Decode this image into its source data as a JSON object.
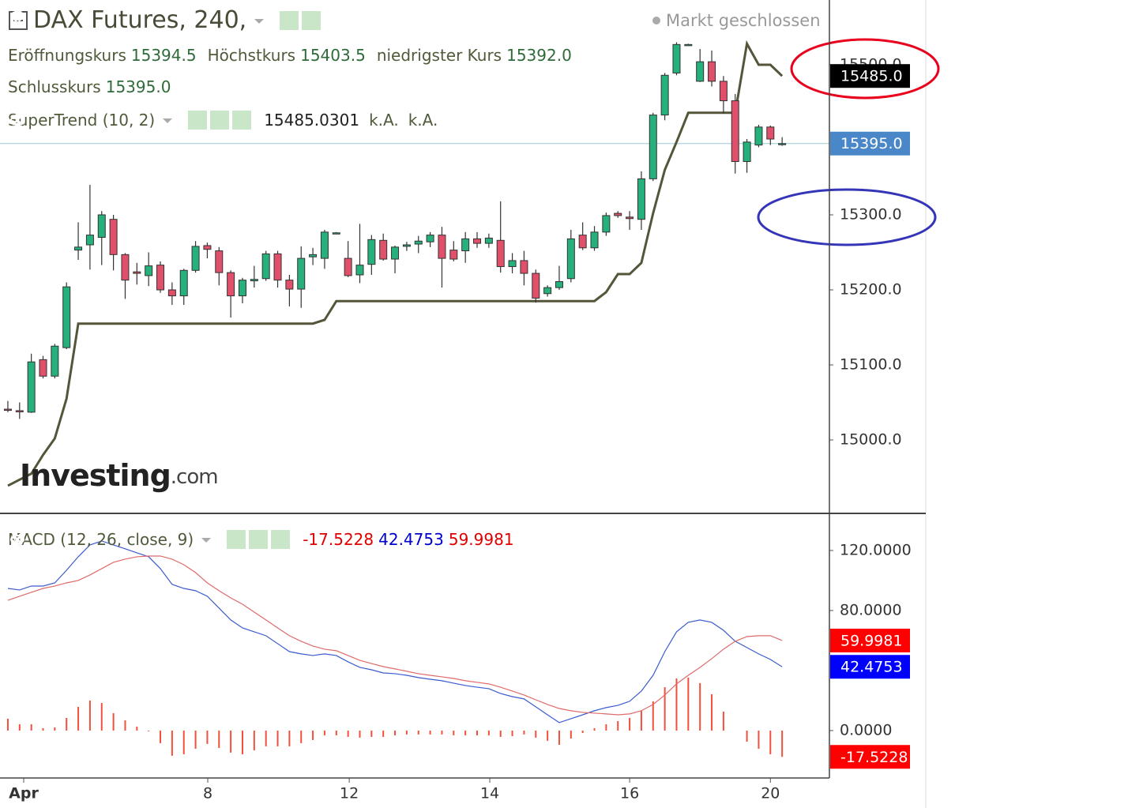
{
  "header": {
    "title": "DAX Futures, 240,",
    "status": "Markt geschlossen",
    "ohlc": [
      {
        "label": "Eröffnungskurs",
        "value": "15394.5"
      },
      {
        "label": "Höchstkurs",
        "value": "15403.5"
      },
      {
        "label": "niedrigster Kurs",
        "value": "15392.0"
      },
      {
        "label": "Schlusskurs",
        "value": "15395.0"
      }
    ],
    "indicator": {
      "label": "SuperTrend (10, 2)",
      "values": [
        "15485.0301",
        "k.A.",
        "k.A."
      ]
    },
    "watermark": "Investing",
    "watermark_suffix": ".com"
  },
  "chart_data": [
    {
      "type": "candlestick",
      "up_color": "#26b07c",
      "down_color": "#e0506a",
      "xlim": [
        -0.67,
        70.03
      ],
      "ylim": [
        14904.2,
        15586.3
      ],
      "yticks": [
        {
          "value": 15000,
          "label": "15000.0"
        },
        {
          "value": 15100,
          "label": "15100.0"
        },
        {
          "value": 15200,
          "label": "15200.0"
        },
        {
          "value": 15300,
          "label": "15300.0"
        },
        {
          "value": 15500,
          "label": "15500.0"
        }
      ],
      "x": [
        0,
        1,
        2,
        3,
        4,
        5,
        6,
        7,
        8,
        9,
        10,
        11,
        12,
        13,
        14,
        15,
        16,
        17,
        18,
        19,
        20,
        21,
        22,
        23,
        24,
        25,
        26,
        27,
        28,
        29,
        30,
        31,
        32,
        33,
        34,
        35,
        36,
        37,
        38,
        39,
        40,
        41,
        42,
        43,
        44,
        45,
        46,
        47,
        48,
        49,
        50,
        51,
        52,
        53,
        54,
        55,
        56,
        57,
        58,
        59,
        60,
        61,
        62,
        63,
        64,
        65,
        66
      ],
      "open": [
        15041,
        15039,
        15037,
        15107,
        15085,
        15123,
        15253,
        15260,
        15270,
        15294,
        15247,
        15224,
        15219,
        15233,
        15200,
        15192,
        15226,
        15259,
        15252,
        15223,
        15192,
        15212,
        15215,
        15248,
        15213,
        15201,
        15244,
        15242,
        15276,
        15242,
        15220,
        15234,
        15266,
        15241,
        15258,
        15261,
        15264,
        15273,
        15253,
        15252,
        15268,
        15262,
        15266,
        15231,
        15239,
        15222,
        15195,
        15203,
        15215,
        15273,
        15256,
        15277,
        15302,
        15297,
        15294,
        15348,
        15433,
        15489,
        15527,
        15478,
        15504,
        15478,
        15452,
        15371,
        15393,
        15417,
        15394.5
      ],
      "high": [
        15052,
        15050,
        15115,
        15112,
        15128,
        15210,
        15290,
        15340,
        15305,
        15300,
        15249,
        15236,
        15250,
        15238,
        15210,
        15228,
        15265,
        15263,
        15257,
        15226,
        15216,
        15232,
        15252,
        15252,
        15220,
        15258,
        15256,
        15280,
        15277,
        15265,
        15288,
        15273,
        15275,
        15259,
        15264,
        15272,
        15277,
        15284,
        15265,
        15277,
        15277,
        15275,
        15318,
        15249,
        15252,
        15227,
        15206,
        15232,
        15280,
        15290,
        15285,
        15303,
        15305,
        15305,
        15358,
        15436,
        15489,
        15530,
        15528,
        15521,
        15519,
        15485,
        15461,
        15401,
        15420,
        15419,
        15403.5
      ],
      "low": [
        15037,
        15028,
        15036,
        15082,
        15082,
        15121,
        15240,
        15227,
        15233,
        15226,
        15188,
        15207,
        15205,
        15196,
        15180,
        15180,
        15223,
        15242,
        15206,
        15163,
        15182,
        15203,
        15212,
        15203,
        15178,
        15176,
        15233,
        15228,
        15275,
        15217,
        15209,
        15220,
        15239,
        15222,
        15252,
        15249,
        15257,
        15203,
        15238,
        15236,
        15256,
        15256,
        15223,
        15222,
        15206,
        15183,
        15191,
        15200,
        15210,
        15253,
        15252,
        15272,
        15296,
        15280,
        15280,
        15345,
        15426,
        15486,
        15526,
        15477,
        15471,
        15435,
        15355,
        15356,
        15390,
        15393,
        15392
      ],
      "close": [
        15040,
        15038,
        15104,
        15085,
        15125,
        15204,
        15257,
        15273,
        15300,
        15247,
        15213,
        15222,
        15232,
        15200,
        15192,
        15226,
        15258,
        15254,
        15223,
        15192,
        15213,
        15214,
        15248,
        15213,
        15201,
        15242,
        15247,
        15277,
        15276,
        15219,
        15233,
        15267,
        15241,
        15257,
        15260,
        15265,
        15273,
        15242,
        15241,
        15268,
        15262,
        15269,
        15231,
        15239,
        15222,
        15189,
        15203,
        15211,
        15268,
        15256,
        15277,
        15299,
        15299,
        15295,
        15348,
        15433,
        15486,
        15527,
        15527,
        15504,
        15478,
        15452,
        15371,
        15397,
        15417,
        15401,
        15395
      ],
      "lines": [
        {
          "color": "#55553a",
          "values": [
            14939,
            14947,
            14955,
            14980,
            15002,
            15055,
            15155,
            15155,
            15155,
            15155,
            15155,
            15155,
            15155,
            15155,
            15155,
            15155,
            15155,
            15155,
            15155,
            15155,
            15155,
            15155,
            15155,
            15155,
            15155,
            15155,
            15155,
            15160,
            15185,
            15185,
            15185,
            15185,
            15185,
            15185,
            15185,
            15185,
            15185,
            15185,
            15185,
            15185,
            15185,
            15185,
            15185,
            15185,
            15185,
            15185,
            15185,
            15185,
            15185,
            15185,
            15185,
            15197,
            15221,
            15221,
            15236,
            15302,
            15360,
            15397,
            15436,
            15436,
            15436,
            15436,
            15436,
            15528,
            15500,
            15500,
            15485.0301
          ]
        }
      ],
      "badges": [
        {
          "value": 15485.0301,
          "label": "15485.0",
          "color": "#000000"
        },
        {
          "value": 15395,
          "label": "15395.0",
          "color": "#4a87c8",
          "guide": true
        }
      ]
    },
    {
      "type": "macd",
      "title": "MACD (12, 26, close, 9)",
      "xlim": [
        -0.67,
        70.03
      ],
      "ylim": [
        -31.6,
        144.7
      ],
      "yticks": [
        {
          "value": 0,
          "label": "0.0000"
        },
        {
          "value": 80,
          "label": "80.0000"
        },
        {
          "value": 120,
          "label": "120.0000"
        }
      ],
      "xticks": [
        {
          "value": 1.35,
          "label": "Apr"
        },
        {
          "value": 17.04,
          "label": "8"
        },
        {
          "value": 29.1,
          "label": "12"
        },
        {
          "value": 41.08,
          "label": "14"
        },
        {
          "value": 53.0,
          "label": "16"
        },
        {
          "value": 65.0,
          "label": "20"
        }
      ],
      "x": [
        0,
        1,
        2,
        3,
        4,
        5,
        6,
        7,
        8,
        9,
        10,
        11,
        12,
        13,
        14,
        15,
        16,
        17,
        18,
        19,
        20,
        21,
        22,
        23,
        24,
        25,
        26,
        27,
        28,
        29,
        30,
        31,
        32,
        33,
        34,
        35,
        36,
        37,
        38,
        39,
        40,
        41,
        42,
        43,
        44,
        45,
        46,
        47,
        48,
        49,
        50,
        51,
        52,
        53,
        54,
        55,
        56,
        57,
        58,
        59,
        60,
        61,
        62,
        63,
        64,
        65,
        66
      ],
      "series": [
        {
          "kind": "histogram",
          "color": "#f0503c",
          "badge_color": "#ff0000",
          "text_color": "#e00000",
          "values": [
            7.9,
            4.2,
            4.2,
            1.6,
            2.1,
            8.4,
            15.8,
            20.0,
            18.4,
            11.6,
            6.8,
            2.6,
            -0.5,
            -8.4,
            -16.8,
            -15.8,
            -12.1,
            -8.9,
            -11.6,
            -14.7,
            -15.8,
            -13.2,
            -10.5,
            -10.5,
            -10.5,
            -8.4,
            -6.3,
            -3.2,
            -3.2,
            -4.2,
            -4.7,
            -4.2,
            -4.2,
            -3.2,
            -2.6,
            -2.6,
            -2.6,
            -2.6,
            -3.2,
            -3.2,
            -3.2,
            -3.2,
            -4.2,
            -3.7,
            -2.6,
            -4.7,
            -6.8,
            -9.5,
            -5.3,
            -1.6,
            1.6,
            4.2,
            6.3,
            8.4,
            13.2,
            19.5,
            28.9,
            34.7,
            35.3,
            31.6,
            24.2,
            12.6,
            0,
            -7.4,
            -12.1,
            -15.8,
            -17.5228
          ]
        },
        {
          "kind": "line",
          "color": "#3b5bd0",
          "badge_color": "#0000ff",
          "text_color": "#0000cc",
          "values": [
            94.7,
            93.7,
            96.3,
            96.3,
            98.4,
            106.8,
            115.8,
            123.7,
            126.3,
            123.7,
            121.1,
            118.4,
            115.8,
            107.9,
            97.4,
            94.7,
            93.2,
            89.5,
            81.6,
            73.7,
            68.4,
            65.8,
            63.2,
            57.9,
            52.6,
            51.1,
            50.0,
            51.1,
            50.0,
            45.8,
            42.1,
            40.5,
            38.4,
            37.9,
            36.8,
            35.3,
            34.2,
            33.2,
            31.6,
            30.0,
            28.9,
            27.9,
            24.7,
            22.6,
            21.1,
            15.8,
            10.5,
            5.3,
            7.9,
            10.5,
            13.2,
            15.3,
            16.8,
            19.5,
            26.3,
            36.8,
            52.6,
            65.8,
            72.1,
            73.7,
            72.1,
            66.8,
            59.5,
            55.3,
            51.1,
            47.4,
            42.4753
          ]
        },
        {
          "kind": "line",
          "color": "#e06a6a",
          "badge_color": "#ff0000",
          "text_color": "#e00000",
          "values": [
            86.8,
            89.5,
            92.1,
            94.7,
            96.3,
            98.4,
            100.0,
            103.7,
            107.9,
            112.1,
            114.2,
            115.8,
            116.3,
            116.3,
            114.2,
            110.5,
            105.3,
            98.4,
            93.2,
            88.4,
            84.2,
            78.9,
            73.7,
            68.4,
            63.2,
            59.5,
            56.3,
            54.2,
            53.2,
            50.0,
            46.8,
            44.7,
            42.6,
            41.1,
            39.5,
            37.9,
            36.8,
            35.8,
            34.7,
            33.2,
            32.1,
            31.1,
            28.9,
            26.3,
            23.7,
            20.5,
            17.4,
            14.7,
            13.2,
            12.1,
            11.6,
            11.1,
            10.5,
            11.1,
            13.2,
            17.4,
            23.7,
            31.1,
            36.8,
            42.1,
            47.9,
            54.2,
            59.5,
            62.6,
            63.2,
            63.2,
            59.9981
          ]
        }
      ]
    }
  ]
}
